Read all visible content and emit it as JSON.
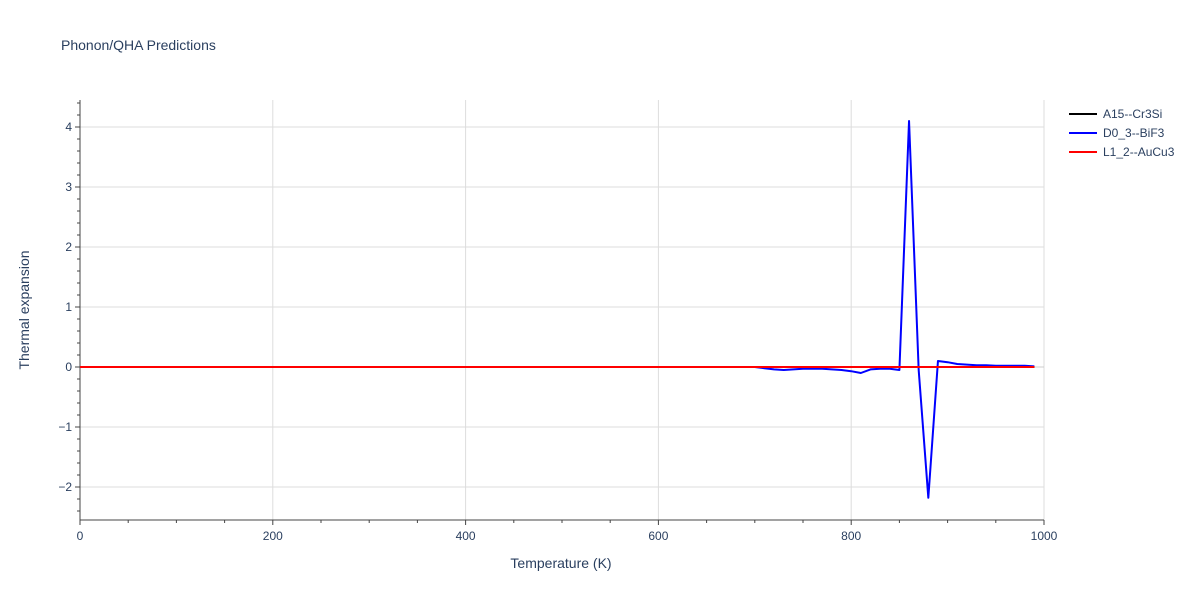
{
  "chart_data": {
    "type": "line",
    "title": "Phonon/QHA Predictions",
    "xlabel": "Temperature (K)",
    "ylabel": "Thermal expansion",
    "xlim": [
      0,
      1000
    ],
    "ylim": [
      -2.55,
      4.45
    ],
    "xticks": [
      0,
      200,
      400,
      600,
      800,
      1000
    ],
    "yticks": [
      -2,
      -1,
      0,
      1,
      2,
      3,
      4
    ],
    "ytick_labels": [
      "−2",
      "−1",
      "0",
      "1",
      "2",
      "3",
      "4"
    ],
    "grid": true,
    "legend_position": "top-right",
    "series": [
      {
        "name": "A15--Cr3Si",
        "color": "#000000",
        "x": [
          0,
          100,
          200,
          300,
          400,
          500,
          600,
          700,
          800,
          900,
          990
        ],
        "y": [
          0,
          0,
          0,
          0,
          0,
          0,
          0,
          0,
          0,
          0,
          0
        ]
      },
      {
        "name": "D0_3--BiF3",
        "color": "#0000ff",
        "x": [
          0,
          100,
          200,
          300,
          400,
          500,
          600,
          700,
          710,
          720,
          730,
          740,
          750,
          760,
          770,
          780,
          790,
          800,
          810,
          820,
          830,
          840,
          850,
          860,
          870,
          880,
          890,
          900,
          910,
          920,
          930,
          940,
          950,
          960,
          970,
          980,
          990
        ],
        "y": [
          0,
          0,
          0,
          0,
          0,
          0,
          0,
          0,
          -0.02,
          -0.04,
          -0.05,
          -0.04,
          -0.03,
          -0.03,
          -0.03,
          -0.04,
          -0.05,
          -0.07,
          -0.1,
          -0.04,
          -0.03,
          -0.03,
          -0.05,
          4.1,
          -0.05,
          -2.18,
          0.1,
          0.08,
          0.05,
          0.04,
          0.03,
          0.03,
          0.02,
          0.02,
          0.02,
          0.02,
          0.01
        ]
      },
      {
        "name": "L1_2--AuCu3",
        "color": "#ff0000",
        "x": [
          0,
          100,
          200,
          300,
          400,
          500,
          600,
          700,
          800,
          900,
          990
        ],
        "y": [
          0,
          0,
          0,
          0,
          0,
          0,
          0,
          0,
          0,
          0,
          0
        ]
      }
    ]
  }
}
